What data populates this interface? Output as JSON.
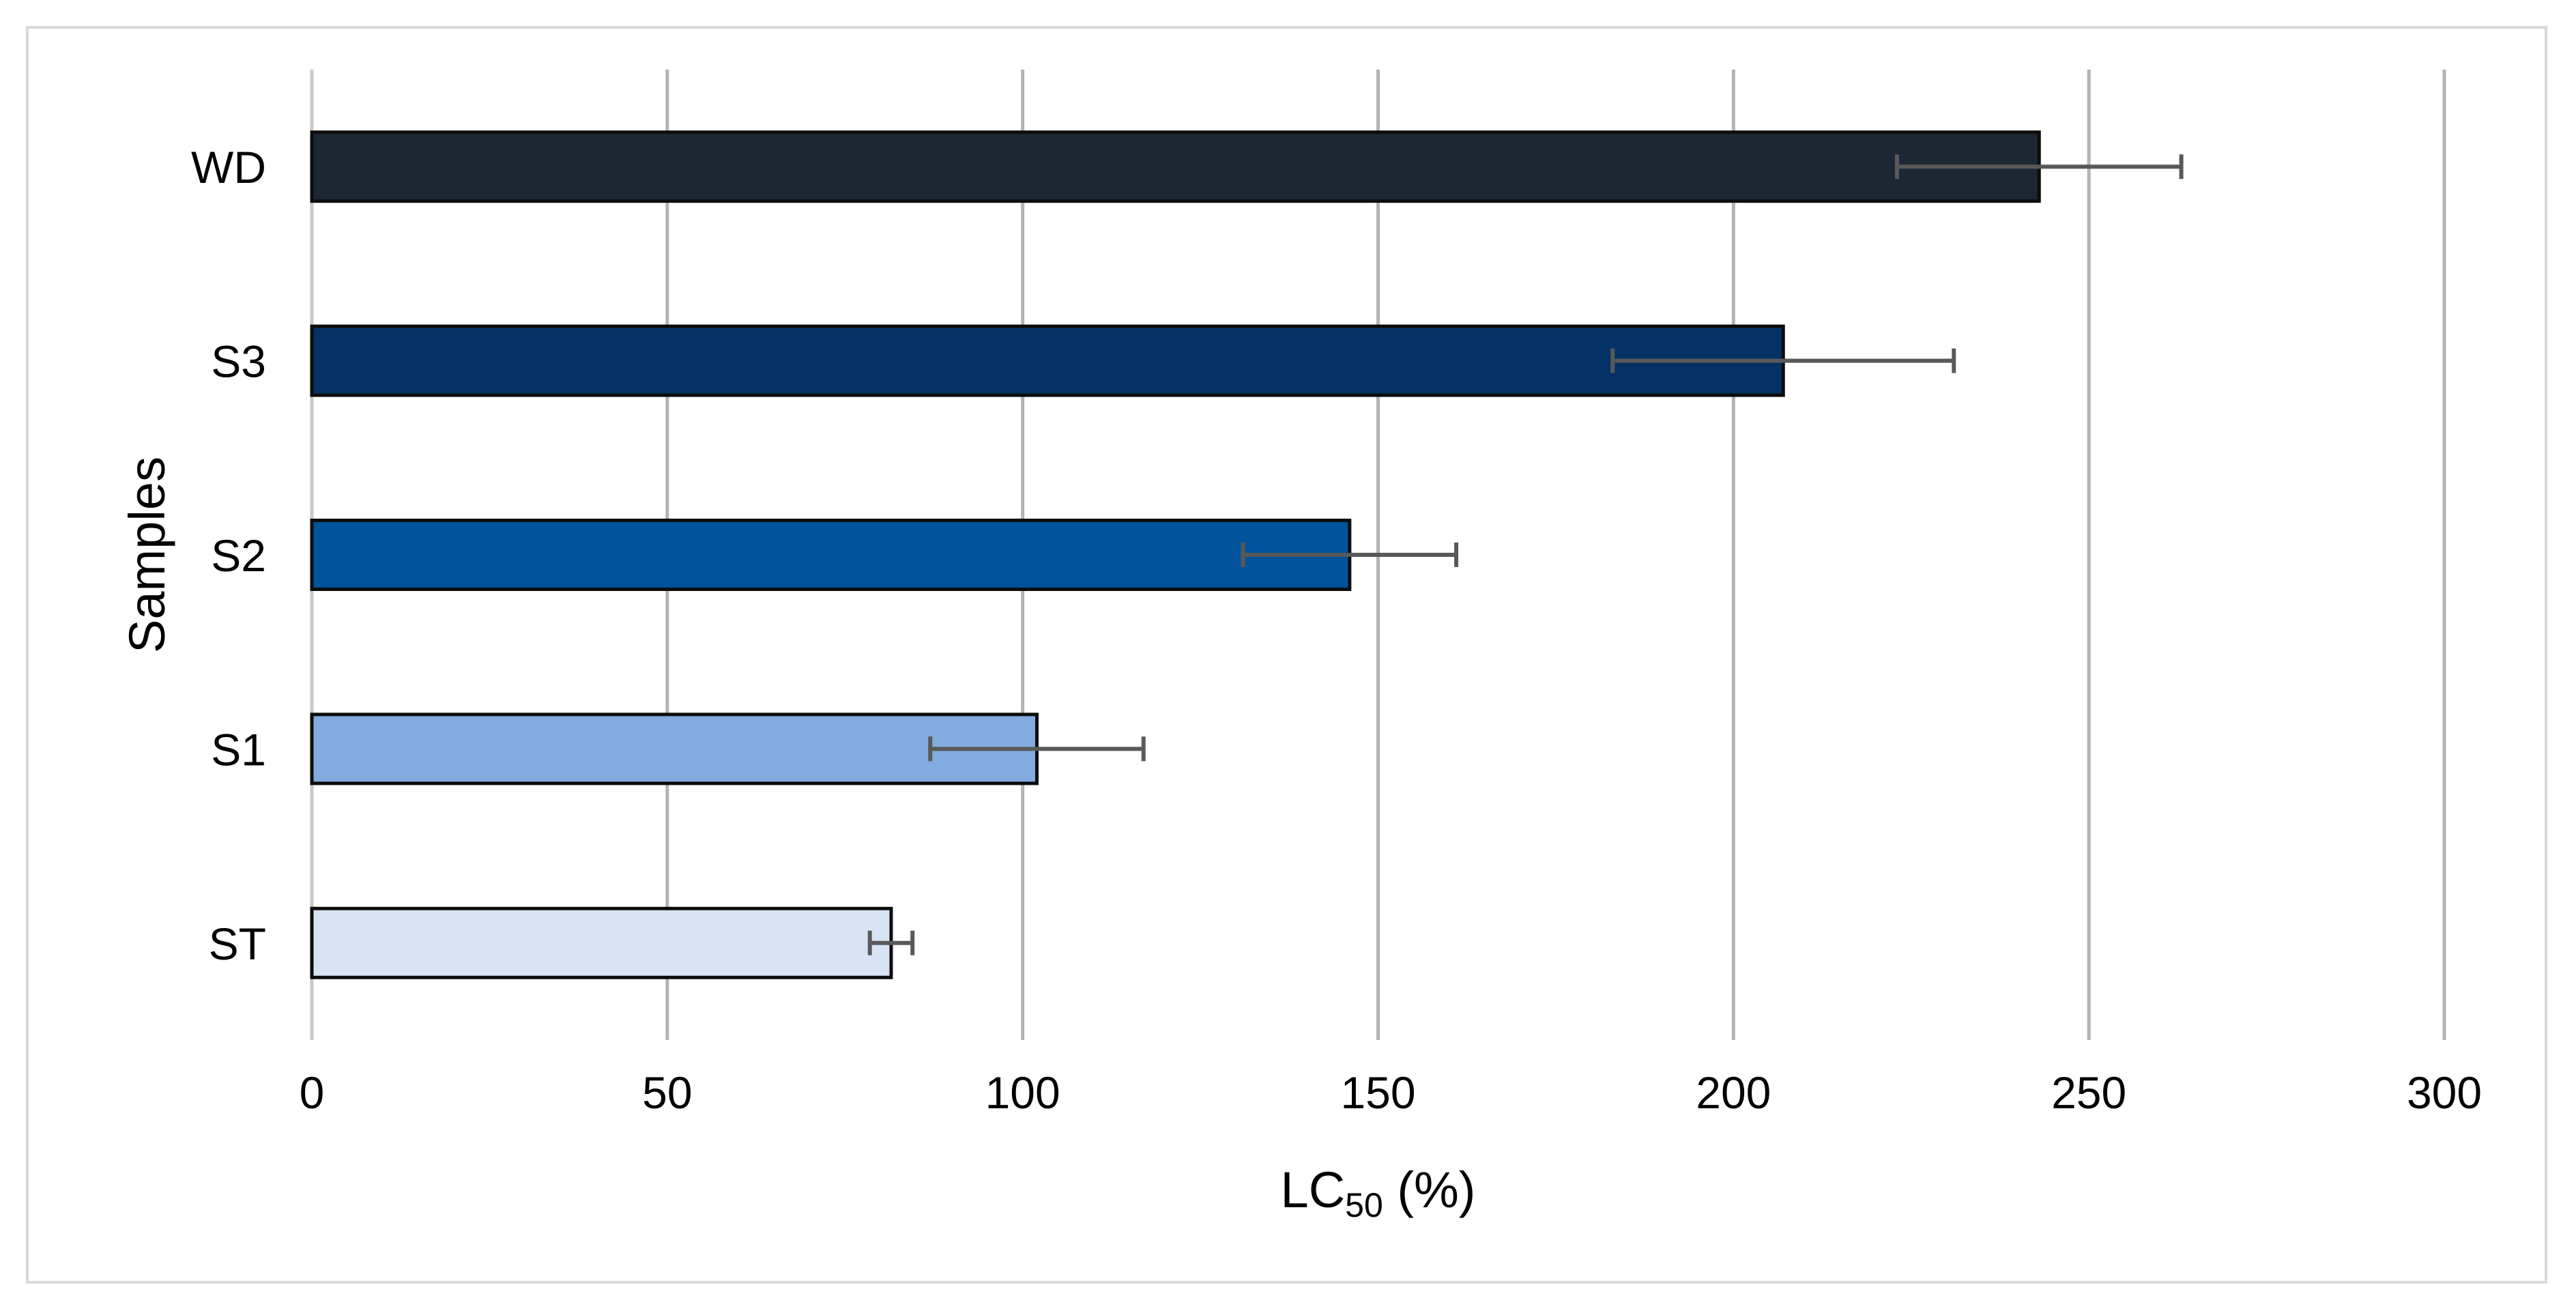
{
  "chart_data": {
    "type": "bar",
    "orientation": "horizontal",
    "categories": [
      "WD",
      "S3",
      "S2",
      "S1",
      "ST"
    ],
    "values": [
      243,
      207,
      146,
      102,
      81.5
    ],
    "errors": [
      20,
      24,
      15,
      15,
      3
    ],
    "colors": [
      "#1b2733",
      "#043264",
      "#00539b",
      "#82abdf",
      "#d7e4f4"
    ],
    "xlabel": "LC",
    "xlabel_sub": "50",
    "xlabel_suffix": " (%)",
    "ylabel": "Samples",
    "xlim": [
      0,
      300
    ],
    "xticks": [
      0,
      50,
      100,
      150,
      200,
      250,
      300
    ],
    "grid": true,
    "legend": "none"
  }
}
